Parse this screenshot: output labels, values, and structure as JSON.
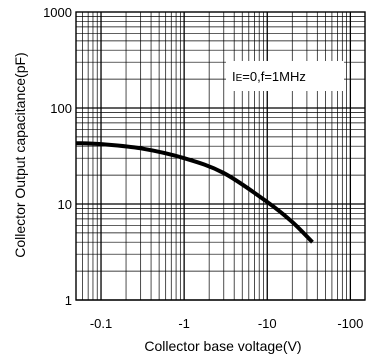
{
  "chart_data": {
    "type": "line",
    "title": "",
    "xlabel": "Collector base voltage(V)",
    "ylabel": "Collector Output capacitance(pF)",
    "x_scale": "log",
    "y_scale": "log",
    "xlim": [
      -0.05,
      -150
    ],
    "ylim": [
      1,
      1000
    ],
    "x_ticks": [
      -0.1,
      -1,
      -10,
      -100
    ],
    "x_tick_labels": [
      "-0.1",
      "-1",
      "-10",
      "-100"
    ],
    "y_ticks": [
      1,
      10,
      100,
      1000
    ],
    "y_tick_labels": [
      "1",
      "10",
      "100",
      "1000"
    ],
    "grid": true,
    "legend": "none",
    "annotation": {
      "text_main": "I",
      "text_sub": "E",
      "text_rest": "=0,f=1MHz"
    },
    "series": [
      {
        "color": "#000000",
        "x": [
          -0.05,
          -0.1,
          -0.3,
          -1,
          -3,
          -10,
          -20,
          -35
        ],
        "y": [
          43,
          42,
          38,
          30,
          21,
          10.5,
          6.5,
          4
        ]
      }
    ]
  }
}
